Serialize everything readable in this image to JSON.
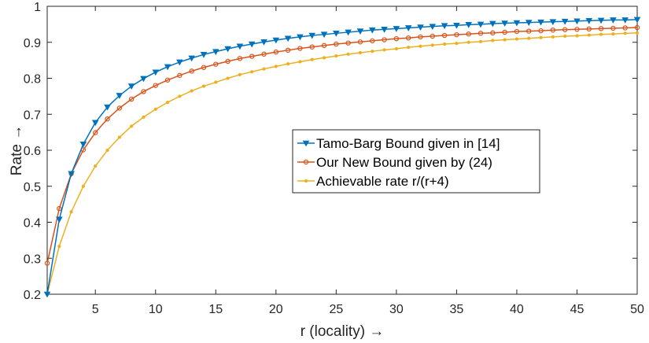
{
  "chart_data": {
    "type": "line",
    "xlabel": "r (locality) →",
    "ylabel": "Rate →",
    "xlim": [
      1,
      50
    ],
    "ylim": [
      0.2,
      1
    ],
    "xticks": [
      5,
      10,
      15,
      20,
      25,
      30,
      35,
      40,
      45,
      50
    ],
    "yticks": [
      0.2,
      0.3,
      0.4,
      0.5,
      0.6,
      0.7,
      0.8,
      0.9,
      1
    ],
    "ytick_labels": [
      "0.2",
      "0.3",
      "0.4",
      "0.5",
      "0.6",
      "0.7",
      "0.8",
      "0.9",
      "1"
    ],
    "grid": false,
    "legend_position": "center-right",
    "x": [
      1,
      2,
      3,
      4,
      5,
      6,
      7,
      8,
      9,
      10,
      11,
      12,
      13,
      14,
      15,
      16,
      17,
      18,
      19,
      20,
      21,
      22,
      23,
      24,
      25,
      26,
      27,
      28,
      29,
      30,
      31,
      32,
      33,
      34,
      35,
      36,
      37,
      38,
      39,
      40,
      41,
      42,
      43,
      44,
      45,
      46,
      47,
      48,
      49,
      50
    ],
    "series": [
      {
        "name": "Tamo-Barg Bound given in [14]",
        "color": "#0072BD",
        "marker": "triangle-down",
        "values": [
          0.2,
          0.408,
          0.535,
          0.617,
          0.677,
          0.72,
          0.752,
          0.778,
          0.799,
          0.817,
          0.832,
          0.845,
          0.856,
          0.866,
          0.874,
          0.882,
          0.889,
          0.895,
          0.901,
          0.906,
          0.911,
          0.915,
          0.919,
          0.922,
          0.925,
          0.928,
          0.931,
          0.934,
          0.936,
          0.938,
          0.94,
          0.942,
          0.944,
          0.946,
          0.947,
          0.949,
          0.95,
          0.952,
          0.953,
          0.954,
          0.955,
          0.956,
          0.957,
          0.958,
          0.959,
          0.96,
          0.961,
          0.962,
          0.962,
          0.963
        ]
      },
      {
        "name": "Our New Bound given by (24)",
        "color": "#D95319",
        "marker": "circle",
        "values": [
          0.286,
          0.438,
          0.535,
          0.601,
          0.649,
          0.687,
          0.717,
          0.742,
          0.763,
          0.78,
          0.795,
          0.808,
          0.82,
          0.83,
          0.839,
          0.847,
          0.855,
          0.861,
          0.867,
          0.873,
          0.878,
          0.883,
          0.887,
          0.891,
          0.895,
          0.898,
          0.901,
          0.904,
          0.907,
          0.91,
          0.912,
          0.915,
          0.917,
          0.919,
          0.921,
          0.923,
          0.925,
          0.926,
          0.928,
          0.93,
          0.931,
          0.932,
          0.934,
          0.935,
          0.936,
          0.937,
          0.938,
          0.939,
          0.94,
          0.941
        ]
      },
      {
        "name": "Achievable rate r/(r+4)",
        "color": "#EDB120",
        "marker": "dot",
        "values": [
          0.2,
          0.333,
          0.429,
          0.5,
          0.556,
          0.6,
          0.636,
          0.667,
          0.692,
          0.714,
          0.733,
          0.75,
          0.765,
          0.778,
          0.789,
          0.8,
          0.81,
          0.818,
          0.826,
          0.833,
          0.84,
          0.846,
          0.852,
          0.857,
          0.862,
          0.867,
          0.871,
          0.875,
          0.879,
          0.882,
          0.886,
          0.889,
          0.892,
          0.895,
          0.897,
          0.9,
          0.902,
          0.905,
          0.907,
          0.909,
          0.911,
          0.913,
          0.915,
          0.917,
          0.918,
          0.92,
          0.922,
          0.923,
          0.925,
          0.926
        ]
      }
    ]
  }
}
